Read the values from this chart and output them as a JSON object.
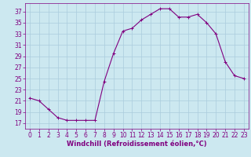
{
  "x": [
    0,
    1,
    2,
    3,
    4,
    5,
    6,
    7,
    8,
    9,
    10,
    11,
    12,
    13,
    14,
    15,
    16,
    17,
    18,
    19,
    20,
    21,
    22,
    23
  ],
  "y": [
    21.5,
    21.0,
    19.5,
    18.0,
    17.5,
    17.5,
    17.5,
    17.5,
    24.5,
    29.5,
    33.5,
    34.0,
    35.5,
    36.5,
    37.5,
    37.5,
    36.0,
    36.0,
    36.5,
    35.0,
    33.0,
    28.0,
    25.5,
    25.0
  ],
  "line_color": "#800080",
  "marker_color": "#800080",
  "bg_color": "#cce8f0",
  "grid_color": "#aaccdd",
  "xlabel": "Windchill (Refroidissement éolien,°C)",
  "xlim": [
    -0.5,
    23.5
  ],
  "ylim": [
    16,
    38.5
  ],
  "yticks": [
    17,
    19,
    21,
    23,
    25,
    27,
    29,
    31,
    33,
    35,
    37
  ],
  "xticks": [
    0,
    1,
    2,
    3,
    4,
    5,
    6,
    7,
    8,
    9,
    10,
    11,
    12,
    13,
    14,
    15,
    16,
    17,
    18,
    19,
    20,
    21,
    22,
    23
  ],
  "xlabel_fontsize": 6.0,
  "tick_fontsize": 5.5,
  "marker_size": 3.0,
  "line_width": 0.8
}
